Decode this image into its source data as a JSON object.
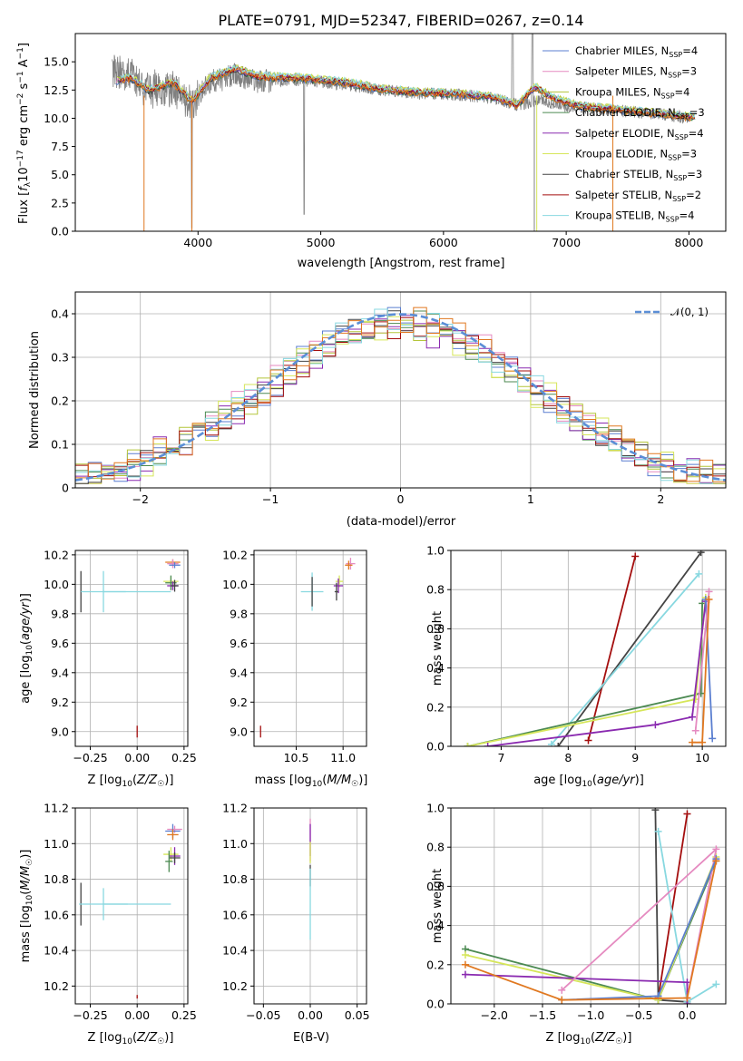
{
  "colors": {
    "Chabrier MILES": "#5b7fd0",
    "Salpeter MILES": "#e58ac0",
    "Kroupa MILES": "#b4c53a",
    "Chabrier ELODIE": "#4c8a52",
    "Salpeter ELODIE": "#8a2ab0",
    "Kroupa ELODIE": "#d6e65a",
    "Chabrier STELIB": "#444444",
    "Salpeter STELIB": "#a40e0e",
    "Kroupa STELIB": "#88d8e0",
    "observed": "#808080",
    "orange": "#e07820",
    "gauss": "#5b8ed6"
  },
  "chart_data": [
    {
      "id": "spectrum",
      "type": "line",
      "title": "PLATE=0791, MJD=52347, FIBERID=0267, z=0.14",
      "xlabel": "wavelength [Angstrom, rest frame]",
      "ylabel": "Flux [f_λ10⁻¹⁷ erg cm⁻² s⁻¹ A⁻¹]",
      "xlim": [
        3000,
        8300
      ],
      "ylim": [
        0,
        17.5
      ],
      "xticks": [
        4000,
        5000,
        6000,
        7000,
        8000
      ],
      "yticks": [
        0.0,
        2.5,
        5.0,
        7.5,
        10.0,
        12.5,
        15.0
      ],
      "grid": false,
      "legend_position": "top-right",
      "legend": [
        {
          "name": "Chabrier MILES, N",
          "sub": "SSP",
          "tail": "=4",
          "color": "#5b7fd0"
        },
        {
          "name": "Salpeter MILES, N",
          "sub": "SSP",
          "tail": "=3",
          "color": "#e58ac0"
        },
        {
          "name": "Kroupa MILES, N",
          "sub": "SSP",
          "tail": "=4",
          "color": "#b4c53a"
        },
        {
          "name": "Chabrier ELODIE, N",
          "sub": "SSP",
          "tail": "=3",
          "color": "#4c8a52"
        },
        {
          "name": "Salpeter ELODIE, N",
          "sub": "SSP",
          "tail": "=4",
          "color": "#8a2ab0"
        },
        {
          "name": "Kroupa ELODIE, N",
          "sub": "SSP",
          "tail": "=3",
          "color": "#d6e65a"
        },
        {
          "name": "Chabrier STELIB, N",
          "sub": "SSP",
          "tail": "=3",
          "color": "#444444"
        },
        {
          "name": "Salpeter STELIB, N",
          "sub": "SSP",
          "tail": "=2",
          "color": "#a40e0e"
        },
        {
          "name": "Kroupa STELIB, N",
          "sub": "SSP",
          "tail": "=4",
          "color": "#88d8e0"
        }
      ],
      "observed_spectrum_anchors": [
        [
          3300,
          14.2
        ],
        [
          3450,
          14.0
        ],
        [
          3600,
          12.4
        ],
        [
          3800,
          12.6
        ],
        [
          3950,
          11.2
        ],
        [
          4100,
          13.2
        ],
        [
          4300,
          13.8
        ],
        [
          4500,
          13.3
        ],
        [
          4800,
          13.4
        ],
        [
          5000,
          13.2
        ],
        [
          5200,
          13.0
        ],
        [
          5500,
          12.5
        ],
        [
          5800,
          12.2
        ],
        [
          6100,
          12.1
        ],
        [
          6400,
          11.8
        ],
        [
          6600,
          11.2
        ],
        [
          6800,
          11.6
        ],
        [
          7000,
          11.0
        ],
        [
          7300,
          10.8
        ],
        [
          7600,
          10.5
        ],
        [
          7800,
          10.3
        ],
        [
          8000,
          10.0
        ]
      ],
      "model_spectrum_anchors": [
        [
          3330,
          13.3
        ],
        [
          3450,
          13.6
        ],
        [
          3600,
          12.5
        ],
        [
          3800,
          13.2
        ],
        [
          3950,
          11.5
        ],
        [
          4100,
          13.6
        ],
        [
          4300,
          14.4
        ],
        [
          4500,
          13.7
        ],
        [
          4800,
          13.6
        ],
        [
          5000,
          13.4
        ],
        [
          5200,
          13.2
        ],
        [
          5500,
          12.6
        ],
        [
          5800,
          12.3
        ],
        [
          6100,
          12.2
        ],
        [
          6400,
          11.9
        ],
        [
          6600,
          11.2
        ],
        [
          6750,
          12.8
        ],
        [
          6900,
          11.8
        ],
        [
          7100,
          11.1
        ],
        [
          7300,
          10.9
        ],
        [
          7600,
          10.6
        ],
        [
          7800,
          10.4
        ],
        [
          8050,
          10.1
        ]
      ]
    },
    {
      "id": "residuals",
      "type": "histogram",
      "xlabel": "(data-model)/error",
      "ylabel": "Normed distribution",
      "xlim": [
        -2.5,
        2.5
      ],
      "ylim": [
        0,
        0.45
      ],
      "xticks": [
        -2,
        -1,
        0,
        1,
        2
      ],
      "yticks": [
        0.0,
        0.1,
        0.2,
        0.3,
        0.4
      ],
      "grid": true,
      "legend_position": "top-right",
      "legend": "𝒩(0, 1)",
      "bin_width": 0.1,
      "series": [
        {
          "name": "Chabrier MILES",
          "color": "#5b7fd0",
          "amp": 0.38,
          "sigma": 1.02,
          "noise": 0.035,
          "seed": 1
        },
        {
          "name": "Salpeter MILES",
          "color": "#e58ac0",
          "amp": 0.39,
          "sigma": 1.03,
          "noise": 0.035,
          "seed": 2
        },
        {
          "name": "Kroupa MILES",
          "color": "#b4c53a",
          "amp": 0.37,
          "sigma": 1.05,
          "noise": 0.035,
          "seed": 3
        },
        {
          "name": "Chabrier ELODIE",
          "color": "#4c8a52",
          "amp": 0.38,
          "sigma": 1.04,
          "noise": 0.035,
          "seed": 4
        },
        {
          "name": "Salpeter ELODIE",
          "color": "#8a2ab0",
          "amp": 0.36,
          "sigma": 1.06,
          "noise": 0.04,
          "seed": 5
        },
        {
          "name": "Kroupa ELODIE",
          "color": "#d6e65a",
          "amp": 0.37,
          "sigma": 1.05,
          "noise": 0.04,
          "seed": 6
        },
        {
          "name": "Chabrier STELIB",
          "color": "#444444",
          "amp": 0.38,
          "sigma": 1.03,
          "noise": 0.03,
          "seed": 7
        },
        {
          "name": "Salpeter STELIB",
          "color": "#a40e0e",
          "amp": 0.37,
          "sigma": 1.04,
          "noise": 0.035,
          "seed": 8
        },
        {
          "name": "Kroupa STELIB",
          "color": "#88d8e0",
          "amp": 0.38,
          "sigma": 1.02,
          "noise": 0.035,
          "seed": 9
        },
        {
          "name": "orange",
          "color": "#e07820",
          "amp": 0.39,
          "sigma": 1.03,
          "noise": 0.035,
          "seed": 10
        }
      ],
      "gaussian": {
        "mu": 0,
        "sigma": 1
      }
    },
    {
      "id": "age_vs_Z",
      "type": "errorbar",
      "xlabel": "Z [log₁₀(Z/Z☉)]",
      "ylabel": "age  [log₁₀(age/yr)]",
      "xlim": [
        -0.33,
        0.27
      ],
      "ylim": [
        8.9,
        10.23
      ],
      "xticks": [
        -0.25,
        0.0,
        0.25
      ],
      "xticklabels": [
        "−0.25",
        "0.00",
        "0.25"
      ],
      "yticks": [
        9.0,
        9.2,
        9.4,
        9.6,
        9.8,
        10.0,
        10.2
      ],
      "grid": true,
      "points": [
        {
          "x": 0.19,
          "y": 10.15,
          "xerr": 0.04,
          "yerr": 0.02,
          "color": "#e07820"
        },
        {
          "x": 0.19,
          "y": 10.14,
          "xerr": 0.03,
          "yerr": 0.03,
          "color": "#e58ac0"
        },
        {
          "x": 0.2,
          "y": 10.13,
          "xerr": 0.03,
          "yerr": 0.02,
          "color": "#5b7fd0"
        },
        {
          "x": 0.18,
          "y": 10.02,
          "xerr": 0.04,
          "yerr": 0.03,
          "color": "#d6e65a"
        },
        {
          "x": 0.18,
          "y": 10.01,
          "xerr": 0.03,
          "yerr": 0.05,
          "color": "#4c8a52"
        },
        {
          "x": 0.19,
          "y": 9.99,
          "xerr": 0.03,
          "yerr": 0.03,
          "color": "#8a2ab0"
        },
        {
          "x": 0.2,
          "y": 9.99,
          "xerr": 0.02,
          "yerr": 0.04,
          "color": "#444444"
        },
        {
          "x": -0.3,
          "y": 9.95,
          "xerr": 0.0,
          "yerr": 0.14,
          "color": "#444444"
        },
        {
          "x": -0.18,
          "y": 9.95,
          "xerr": 0.12,
          "yerr": 0.14,
          "color": "#88d8e0"
        },
        {
          "x": 0.0,
          "y": 9.95,
          "xerr": 0.18,
          "yerr": 0.0,
          "color": "#88d8e0"
        },
        {
          "x": 0.0,
          "y": 9.0,
          "xerr": 0.0,
          "yerr": 0.04,
          "color": "#a40e0e"
        }
      ]
    },
    {
      "id": "age_vs_mass",
      "type": "errorbar",
      "xlabel": "mass [log₁₀(M/M☉)]",
      "ylabel": "",
      "xlim": [
        10.05,
        11.25
      ],
      "ylim": [
        8.9,
        10.23
      ],
      "xticks": [
        10.5,
        11.0
      ],
      "xticklabels": [
        "10.5",
        "11.0"
      ],
      "yticks": [
        9.0,
        9.2,
        9.4,
        9.6,
        9.8,
        10.0,
        10.2
      ],
      "grid": true,
      "points": [
        {
          "x": 11.08,
          "y": 10.14,
          "xerr": 0.05,
          "yerr": 0.04,
          "color": "#e58ac0"
        },
        {
          "x": 11.06,
          "y": 10.13,
          "xerr": 0.04,
          "yerr": 0.03,
          "color": "#e07820"
        },
        {
          "x": 10.96,
          "y": 10.02,
          "xerr": 0.04,
          "yerr": 0.04,
          "color": "#d6e65a"
        },
        {
          "x": 10.95,
          "y": 9.99,
          "xerr": 0.05,
          "yerr": 0.05,
          "color": "#8a2ab0"
        },
        {
          "x": 10.93,
          "y": 9.95,
          "xerr": 0.02,
          "yerr": 0.06,
          "color": "#444444"
        },
        {
          "x": 10.67,
          "y": 9.95,
          "xerr": 0.12,
          "yerr": 0.13,
          "color": "#88d8e0"
        },
        {
          "x": 10.67,
          "y": 9.95,
          "xerr": 0.0,
          "yerr": 0.1,
          "color": "#444444"
        },
        {
          "x": 10.12,
          "y": 9.0,
          "xerr": 0.0,
          "yerr": 0.04,
          "color": "#a40e0e"
        }
      ]
    },
    {
      "id": "weight_vs_age",
      "type": "line",
      "xlabel": "age  [log₁₀(age/yr)]",
      "ylabel": "mass weight",
      "xlim": [
        6.25,
        10.35
      ],
      "ylim": [
        0,
        1
      ],
      "xticks": [
        7,
        8,
        9,
        10
      ],
      "yticks": [
        0.0,
        0.2,
        0.4,
        0.6,
        0.8,
        1.0
      ],
      "grid": true,
      "series": [
        {
          "name": "Salpeter STELIB",
          "color": "#a40e0e",
          "x": [
            8.3,
            9.0
          ],
          "y": [
            0.03,
            0.97
          ]
        },
        {
          "name": "Chabrier STELIB",
          "color": "#444444",
          "x": [
            7.85,
            9.98
          ],
          "y": [
            0.0,
            0.99
          ]
        },
        {
          "name": "Kroupa STELIB",
          "color": "#88d8e0",
          "x": [
            7.75,
            9.95
          ],
          "y": [
            0.01,
            0.88
          ]
        },
        {
          "name": "Chabrier ELODIE",
          "color": "#4c8a52",
          "x": [
            6.5,
            9.98,
            10.0
          ],
          "y": [
            0.0,
            0.27,
            0.73
          ]
        },
        {
          "name": "Kroupa ELODIE",
          "color": "#d6e65a",
          "x": [
            6.5,
            9.9,
            10.05
          ],
          "y": [
            0.0,
            0.24,
            0.76
          ]
        },
        {
          "name": "Salpeter ELODIE",
          "color": "#8a2ab0",
          "x": [
            6.8,
            9.3,
            9.85,
            10.05
          ],
          "y": [
            0.0,
            0.11,
            0.15,
            0.74
          ]
        },
        {
          "name": "Chabrier MILES",
          "color": "#5b7fd0",
          "x": [
            10.05,
            10.15
          ],
          "y": [
            0.75,
            0.04
          ]
        },
        {
          "name": "Salpeter MILES",
          "color": "#e58ac0",
          "x": [
            9.9,
            10.1
          ],
          "y": [
            0.08,
            0.79
          ]
        },
        {
          "name": "orange",
          "color": "#e07820",
          "x": [
            9.85,
            10.0,
            10.1
          ],
          "y": [
            0.02,
            0.02,
            0.75
          ]
        }
      ]
    },
    {
      "id": "mass_vs_Z",
      "type": "errorbar",
      "xlabel": "Z [log₁₀(Z/Z☉)]",
      "ylabel": "mass [log₁₀(M/M☉)]",
      "xlim": [
        -0.33,
        0.27
      ],
      "ylim": [
        10.1,
        11.2
      ],
      "xticks": [
        -0.25,
        0.0,
        0.25
      ],
      "xticklabels": [
        "−0.25",
        "0.00",
        "0.25"
      ],
      "yticks": [
        10.2,
        10.4,
        10.6,
        10.8,
        11.0,
        11.2
      ],
      "grid": true,
      "points": [
        {
          "x": 0.2,
          "y": 11.08,
          "xerr": 0.04,
          "yerr": 0.02,
          "color": "#e58ac0"
        },
        {
          "x": 0.19,
          "y": 11.07,
          "xerr": 0.04,
          "yerr": 0.04,
          "color": "#5b7fd0"
        },
        {
          "x": 0.19,
          "y": 11.05,
          "xerr": 0.03,
          "yerr": 0.03,
          "color": "#e07820"
        },
        {
          "x": 0.18,
          "y": 10.94,
          "xerr": 0.04,
          "yerr": 0.04,
          "color": "#d6e65a"
        },
        {
          "x": 0.2,
          "y": 10.93,
          "xerr": 0.03,
          "yerr": 0.05,
          "color": "#8a2ab0"
        },
        {
          "x": 0.2,
          "y": 10.92,
          "xerr": 0.03,
          "yerr": 0.03,
          "color": "#444444"
        },
        {
          "x": 0.17,
          "y": 10.9,
          "xerr": 0.02,
          "yerr": 0.06,
          "color": "#4c8a52"
        },
        {
          "x": -0.3,
          "y": 10.66,
          "xerr": 0.0,
          "yerr": 0.12,
          "color": "#444444"
        },
        {
          "x": -0.18,
          "y": 10.66,
          "xerr": 0.13,
          "yerr": 0.09,
          "color": "#88d8e0"
        },
        {
          "x": 0.0,
          "y": 10.66,
          "xerr": 0.18,
          "yerr": 0.0,
          "color": "#88d8e0"
        },
        {
          "x": 0.0,
          "y": 10.14,
          "xerr": 0.0,
          "yerr": 0.01,
          "color": "#a40e0e"
        }
      ]
    },
    {
      "id": "mass_vs_EBV",
      "type": "errorbar",
      "xlabel": "E(B-V)",
      "ylabel": "",
      "xlim": [
        -0.06,
        0.06
      ],
      "ylim": [
        10.1,
        11.2
      ],
      "xticks": [
        -0.05,
        0.0,
        0.05
      ],
      "xticklabels": [
        "−0.05",
        "0.00",
        "0.05"
      ],
      "yticks": [
        10.2,
        10.4,
        10.6,
        10.8,
        11.0,
        11.2
      ],
      "grid": true,
      "points": [
        {
          "x": 0.0,
          "y": 11.02,
          "xerr": 0.0,
          "yerr": 0.12,
          "color": "#e58ac0"
        },
        {
          "x": 0.0,
          "y": 11.02,
          "xerr": 0.0,
          "yerr": 0.09,
          "color": "#8a2ab0"
        },
        {
          "x": 0.0,
          "y": 10.95,
          "xerr": 0.0,
          "yerr": 0.06,
          "color": "#d6e65a"
        },
        {
          "x": 0.0,
          "y": 10.82,
          "xerr": 0.0,
          "yerr": 0.06,
          "color": "#444444"
        },
        {
          "x": 0.0,
          "y": 10.66,
          "xerr": 0.0,
          "yerr": 0.2,
          "color": "#88d8e0"
        }
      ]
    },
    {
      "id": "weight_vs_Z",
      "type": "line",
      "xlabel": "Z [log₁₀(Z/Z☉)]",
      "ylabel": "mass weight",
      "xlim": [
        -2.45,
        0.4
      ],
      "ylim": [
        0,
        1
      ],
      "xticks": [
        -2.0,
        -1.5,
        -1.0,
        -0.5,
        0.0
      ],
      "xticklabels": [
        "−2.0",
        "−1.5",
        "−1.0",
        "−0.5",
        "0.0"
      ],
      "yticks": [
        0.0,
        0.2,
        0.4,
        0.6,
        0.8,
        1.0
      ],
      "grid": true,
      "series": [
        {
          "name": "Salpeter STELIB",
          "color": "#a40e0e",
          "x": [
            -0.3,
            0.0
          ],
          "y": [
            0.03,
            0.97
          ]
        },
        {
          "name": "Chabrier STELIB",
          "color": "#444444",
          "x": [
            -0.33,
            -0.3,
            0.0
          ],
          "y": [
            0.99,
            0.02,
            0.01
          ]
        },
        {
          "name": "Kroupa STELIB",
          "color": "#88d8e0",
          "x": [
            -0.3,
            0.0,
            0.3
          ],
          "y": [
            0.88,
            0.01,
            0.1
          ]
        },
        {
          "name": "Chabrier ELODIE",
          "color": "#4c8a52",
          "x": [
            -2.3,
            -0.3,
            0.3
          ],
          "y": [
            0.28,
            0.02,
            0.73
          ]
        },
        {
          "name": "Kroupa ELODIE",
          "color": "#d6e65a",
          "x": [
            -2.3,
            -0.3,
            0.3
          ],
          "y": [
            0.25,
            0.02,
            0.75
          ]
        },
        {
          "name": "Salpeter ELODIE",
          "color": "#8a2ab0",
          "x": [
            -2.3,
            0.0,
            0.0
          ],
          "y": [
            0.15,
            0.11,
            0.0
          ]
        },
        {
          "name": "Salpeter MILES",
          "color": "#e58ac0",
          "x": [
            -1.3,
            0.3,
            0.0
          ],
          "y": [
            0.07,
            0.79,
            0.03
          ]
        },
        {
          "name": "Chabrier MILES",
          "color": "#5b7fd0",
          "x": [
            -1.3,
            -0.3,
            0.3
          ],
          "y": [
            0.02,
            0.04,
            0.74
          ]
        },
        {
          "name": "orange",
          "color": "#e07820",
          "x": [
            -2.3,
            -1.3,
            0.0,
            0.3
          ],
          "y": [
            0.2,
            0.02,
            0.03,
            0.73
          ]
        }
      ]
    }
  ]
}
